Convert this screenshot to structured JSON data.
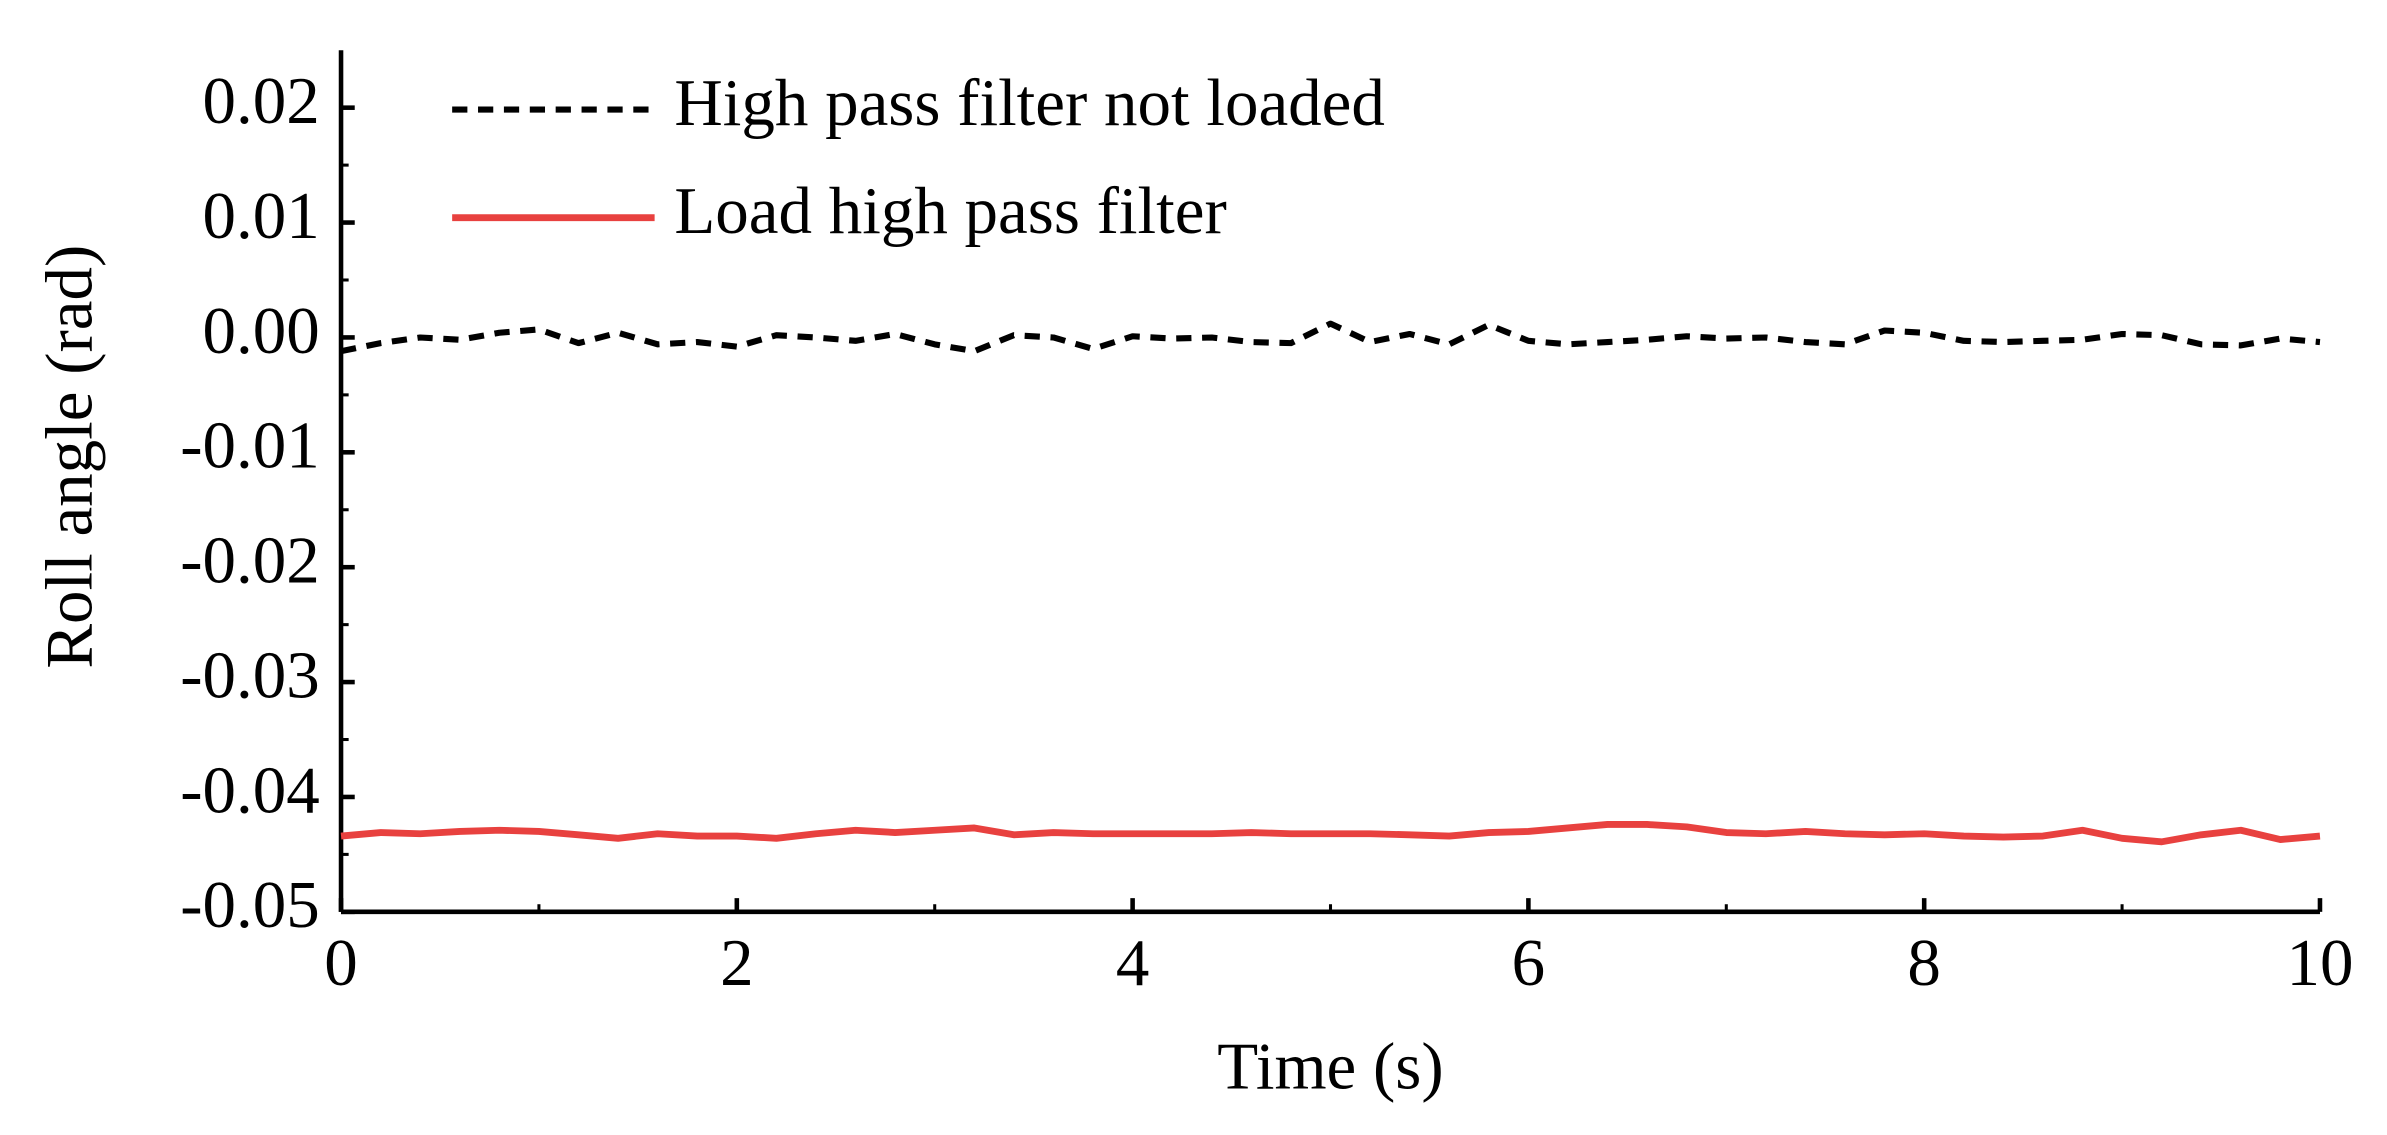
{
  "chart_data": {
    "type": "line",
    "xlabel": "Time (s)",
    "ylabel": "Roll angle (rad)",
    "x": [
      0,
      0.2,
      0.4,
      0.6,
      0.8,
      1,
      1.2,
      1.4,
      1.6,
      1.8,
      2,
      2.2,
      2.4,
      2.6,
      2.8,
      3,
      3.2,
      3.4,
      3.6,
      3.8,
      4,
      4.2,
      4.4,
      4.6,
      4.8,
      5,
      5.2,
      5.4,
      5.6,
      5.8,
      6,
      6.2,
      6.4,
      6.6,
      6.8,
      7,
      7.2,
      7.4,
      7.6,
      7.8,
      8,
      8.2,
      8.4,
      8.6,
      8.8,
      9,
      9.2,
      9.4,
      9.6,
      9.8,
      10
    ],
    "series": [
      {
        "name": "High pass filter not loaded",
        "color": "#000000",
        "dashed": true,
        "values": [
          -0.0012,
          -0.0005,
          0.0,
          -0.0002,
          0.0004,
          0.0007,
          -0.0005,
          0.0004,
          -0.0006,
          -0.0004,
          -0.0008,
          0.0002,
          0.0,
          -0.0003,
          0.0003,
          -0.0006,
          -0.0012,
          0.0002,
          0.0,
          -0.001,
          0.0001,
          -0.0001,
          0.0,
          -0.0004,
          -0.0005,
          0.0012,
          -0.0004,
          0.0003,
          -0.0006,
          0.0011,
          -0.0003,
          -0.0006,
          -0.0004,
          -0.0002,
          0.0001,
          -0.0001,
          0.0,
          -0.0004,
          -0.0006,
          0.0006,
          0.0004,
          -0.0003,
          -0.0004,
          -0.0003,
          -0.0002,
          0.0003,
          0.0002,
          -0.0006,
          -0.0007,
          -0.0001,
          -0.0004
        ]
      },
      {
        "name": "Load high pass filter",
        "color": "#e8413f",
        "dashed": false,
        "values": [
          -0.0434,
          -0.0431,
          -0.0432,
          -0.043,
          -0.0429,
          -0.043,
          -0.0433,
          -0.0436,
          -0.0432,
          -0.0434,
          -0.0434,
          -0.0436,
          -0.0432,
          -0.0429,
          -0.0431,
          -0.0429,
          -0.0427,
          -0.0433,
          -0.0431,
          -0.0432,
          -0.0432,
          -0.0432,
          -0.0432,
          -0.0431,
          -0.0432,
          -0.0432,
          -0.0432,
          -0.0433,
          -0.0434,
          -0.0431,
          -0.043,
          -0.0427,
          -0.0424,
          -0.0424,
          -0.0426,
          -0.0431,
          -0.0432,
          -0.043,
          -0.0432,
          -0.0433,
          -0.0432,
          -0.0434,
          -0.0435,
          -0.0434,
          -0.0429,
          -0.0436,
          -0.0439,
          -0.0433,
          -0.0429,
          -0.0437,
          -0.0434
        ]
      }
    ],
    "xlim": [
      0,
      10
    ],
    "xticks": [
      0,
      2,
      4,
      6,
      8,
      10
    ],
    "ylim": [
      -0.05,
      0.025
    ],
    "yticks": [
      {
        "value": -0.05,
        "label": "-0.05"
      },
      {
        "value": -0.04,
        "label": "-0.04"
      },
      {
        "value": -0.03,
        "label": "-0.03"
      },
      {
        "value": -0.02,
        "label": "-0.02"
      },
      {
        "value": -0.01,
        "label": "-0.01"
      },
      {
        "value": 0,
        "label": "0.00"
      },
      {
        "value": 0.01,
        "label": "0.01"
      },
      {
        "value": 0.02,
        "label": "0.02"
      }
    ],
    "grid": false,
    "legend": "upper left"
  }
}
